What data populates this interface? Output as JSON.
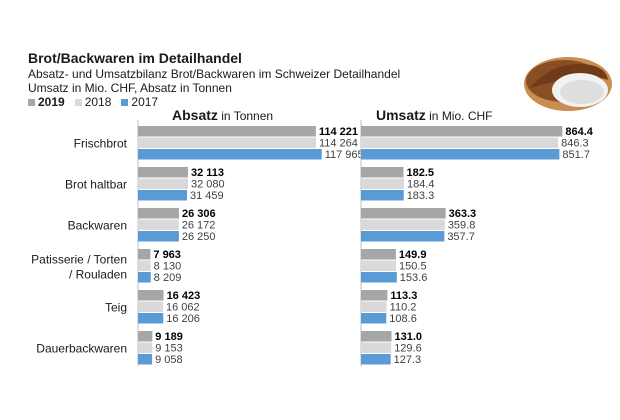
{
  "header": {
    "title": "Brot/Backwaren im Detailhandel",
    "subtitle": "Absatz- und Umsatzbilanz Brot/Backwaren im Schweizer Detailhandel",
    "units": "Umsatz in Mio. CHF, Absatz in Tonnen"
  },
  "legend": [
    {
      "label": "2019",
      "color": "#a6a6a6"
    },
    {
      "label": "2018",
      "color": "#d9d9d9"
    },
    {
      "label": "2017",
      "color": "#5b9bd5"
    }
  ],
  "panels": {
    "left": {
      "title": "Absatz",
      "unit": "in Tonnen"
    },
    "right": {
      "title": "Umsatz",
      "unit": "in Mio. CHF"
    }
  },
  "icons": {
    "bread": "bread-loaf-icon"
  },
  "chart_data": [
    {
      "type": "bar",
      "orientation": "horizontal",
      "title": "Absatz in Tonnen",
      "categories": [
        "Frischbrot",
        "Brot haltbar",
        "Backwaren",
        "Patisserie / Torten / Rouladen",
        "Teig",
        "Dauerbackwaren"
      ],
      "series": [
        {
          "name": "2019",
          "values": [
            114221,
            32113,
            26306,
            7963,
            16423,
            9189
          ],
          "labels": [
            "114 221",
            "32 113",
            "26 306",
            "7 963",
            "16 423",
            "9 189"
          ]
        },
        {
          "name": "2018",
          "values": [
            114264,
            32080,
            26172,
            8130,
            16062,
            9153
          ],
          "labels": [
            "114 264",
            "32 080",
            "26 172",
            "8 130",
            "16 062",
            "9 153"
          ]
        },
        {
          "name": "2017",
          "values": [
            117965,
            31459,
            26250,
            8209,
            16206,
            9058
          ],
          "labels": [
            "117 965",
            "31 459",
            "26 250",
            "8 209",
            "16 206",
            "9 058"
          ]
        }
      ],
      "xlim": [
        0,
        122000
      ]
    },
    {
      "type": "bar",
      "orientation": "horizontal",
      "title": "Umsatz in Mio. CHF",
      "categories": [
        "Frischbrot",
        "Brot haltbar",
        "Backwaren",
        "Patisserie / Torten / Rouladen",
        "Teig",
        "Dauerbackwaren"
      ],
      "series": [
        {
          "name": "2019",
          "values": [
            864.4,
            182.5,
            363.3,
            149.9,
            113.3,
            131.0
          ],
          "labels": [
            "864.4",
            "182.5",
            "363.3",
            "149.9",
            "113.3",
            "131.0"
          ]
        },
        {
          "name": "2018",
          "values": [
            846.3,
            184.4,
            359.8,
            150.5,
            110.2,
            129.6
          ],
          "labels": [
            "846.3",
            "184.4",
            "359.8",
            "150.5",
            "110.2",
            "129.6"
          ]
        },
        {
          "name": "2017",
          "values": [
            851.7,
            183.3,
            357.7,
            153.6,
            108.6,
            127.3
          ],
          "labels": [
            "851.7",
            "183.3",
            "357.7",
            "153.6",
            "108.6",
            "127.3"
          ]
        }
      ],
      "xlim": [
        0,
        880
      ]
    }
  ]
}
